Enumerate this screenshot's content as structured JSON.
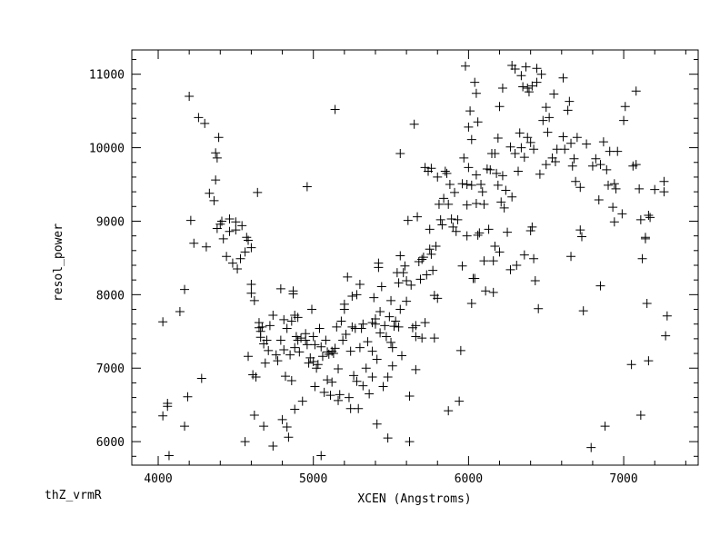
{
  "corner_label": "thZ_vrmR",
  "chart_data": {
    "type": "scatter",
    "xlabel": "XCEN (Angstroms)",
    "ylabel": "resol_power",
    "xlim": [
      3830,
      7480
    ],
    "ylim": [
      5680,
      11330
    ],
    "x_ticks": [
      4000,
      5000,
      6000,
      7000
    ],
    "y_ticks": [
      6000,
      7000,
      8000,
      9000,
      10000,
      11000
    ],
    "marker": "plus",
    "color": "#000000",
    "grid": false,
    "points": [
      [
        4030,
        7630
      ],
      [
        4030,
        6350
      ],
      [
        4060,
        6480
      ],
      [
        4060,
        6520
      ],
      [
        4070,
        5810
      ],
      [
        4140,
        7770
      ],
      [
        4170,
        8070
      ],
      [
        4170,
        6210
      ],
      [
        4190,
        6610
      ],
      [
        4200,
        10700
      ],
      [
        4210,
        9010
      ],
      [
        4230,
        8700
      ],
      [
        4260,
        10410
      ],
      [
        4280,
        6860
      ],
      [
        4300,
        10330
      ],
      [
        4310,
        8650
      ],
      [
        4330,
        9380
      ],
      [
        4360,
        9280
      ],
      [
        4370,
        9930
      ],
      [
        4370,
        9560
      ],
      [
        4380,
        8900
      ],
      [
        4380,
        9860
      ],
      [
        4390,
        10140
      ],
      [
        4400,
        8960
      ],
      [
        4410,
        9000
      ],
      [
        4420,
        8760
      ],
      [
        4440,
        8520
      ],
      [
        4460,
        9030
      ],
      [
        4460,
        8860
      ],
      [
        4480,
        8430
      ],
      [
        4500,
        8990
      ],
      [
        4500,
        8880
      ],
      [
        4510,
        8350
      ],
      [
        4530,
        8490
      ],
      [
        4540,
        8940
      ],
      [
        4560,
        8580
      ],
      [
        4560,
        6000
      ],
      [
        4570,
        8780
      ],
      [
        4580,
        8740
      ],
      [
        4580,
        7160
      ],
      [
        4600,
        8640
      ],
      [
        4600,
        8140
      ],
      [
        4600,
        8020
      ],
      [
        4610,
        6910
      ],
      [
        4620,
        6360
      ],
      [
        4620,
        7920
      ],
      [
        4630,
        6880
      ],
      [
        4640,
        9390
      ],
      [
        4650,
        7620
      ],
      [
        4650,
        7550
      ],
      [
        4660,
        7500
      ],
      [
        4660,
        7420
      ],
      [
        4670,
        7560
      ],
      [
        4680,
        7330
      ],
      [
        4680,
        6210
      ],
      [
        4690,
        7070
      ],
      [
        4700,
        7380
      ],
      [
        4710,
        7240
      ],
      [
        4720,
        7580
      ],
      [
        4740,
        5940
      ],
      [
        4740,
        7720
      ],
      [
        4760,
        7180
      ],
      [
        4770,
        7100
      ],
      [
        4790,
        8080
      ],
      [
        4790,
        7380
      ],
      [
        4800,
        6300
      ],
      [
        4810,
        7250
      ],
      [
        4810,
        7660
      ],
      [
        4820,
        6890
      ],
      [
        4830,
        7540
      ],
      [
        4830,
        6200
      ],
      [
        4840,
        6060
      ],
      [
        4850,
        7180
      ],
      [
        4860,
        6830
      ],
      [
        4860,
        7640
      ],
      [
        4870,
        8050
      ],
      [
        4870,
        8010
      ],
      [
        4880,
        6440
      ],
      [
        4880,
        7280
      ],
      [
        4880,
        7720
      ],
      [
        4890,
        7430
      ],
      [
        4900,
        7380
      ],
      [
        4900,
        7690
      ],
      [
        4910,
        7220
      ],
      [
        4920,
        7410
      ],
      [
        4930,
        6550
      ],
      [
        4950,
        7470
      ],
      [
        4950,
        7380
      ],
      [
        4960,
        9470
      ],
      [
        4960,
        7320
      ],
      [
        4970,
        7070
      ],
      [
        4980,
        7140
      ],
      [
        4990,
        7800
      ],
      [
        5000,
        7430
      ],
      [
        5000,
        7090
      ],
      [
        5010,
        7320
      ],
      [
        5010,
        6750
      ],
      [
        5020,
        7000
      ],
      [
        5030,
        7050
      ],
      [
        5040,
        7540
      ],
      [
        5050,
        7290
      ],
      [
        5050,
        5810
      ],
      [
        5060,
        7160
      ],
      [
        5070,
        6670
      ],
      [
        5080,
        7380
      ],
      [
        5090,
        7220
      ],
      [
        5090,
        6840
      ],
      [
        5100,
        7190
      ],
      [
        5110,
        6630
      ],
      [
        5120,
        6810
      ],
      [
        5120,
        7230
      ],
      [
        5130,
        7200
      ],
      [
        5140,
        10520
      ],
      [
        5140,
        7270
      ],
      [
        5150,
        7560
      ],
      [
        5160,
        6560
      ],
      [
        5160,
        6990
      ],
      [
        5170,
        6640
      ],
      [
        5180,
        7640
      ],
      [
        5190,
        7380
      ],
      [
        5200,
        7800
      ],
      [
        5200,
        7870
      ],
      [
        5210,
        7460
      ],
      [
        5220,
        8240
      ],
      [
        5230,
        6600
      ],
      [
        5240,
        7230
      ],
      [
        5240,
        6450
      ],
      [
        5250,
        7560
      ],
      [
        5250,
        7980
      ],
      [
        5260,
        6900
      ],
      [
        5270,
        7540
      ],
      [
        5280,
        6820
      ],
      [
        5280,
        8000
      ],
      [
        5290,
        6450
      ],
      [
        5300,
        8140
      ],
      [
        5300,
        7280
      ],
      [
        5310,
        7540
      ],
      [
        5320,
        6760
      ],
      [
        5320,
        7600
      ],
      [
        5340,
        7000
      ],
      [
        5350,
        7360
      ],
      [
        5360,
        6650
      ],
      [
        5380,
        7230
      ],
      [
        5380,
        6880
      ],
      [
        5380,
        7620
      ],
      [
        5390,
        7960
      ],
      [
        5400,
        7670
      ],
      [
        5400,
        7600
      ],
      [
        5410,
        6240
      ],
      [
        5410,
        7120
      ],
      [
        5420,
        8430
      ],
      [
        5420,
        8370
      ],
      [
        5430,
        7480
      ],
      [
        5430,
        7770
      ],
      [
        5440,
        8110
      ],
      [
        5450,
        6750
      ],
      [
        5460,
        7580
      ],
      [
        5470,
        7430
      ],
      [
        5480,
        6880
      ],
      [
        5480,
        6050
      ],
      [
        5490,
        7700
      ],
      [
        5500,
        7350
      ],
      [
        5500,
        7920
      ],
      [
        5510,
        7030
      ],
      [
        5510,
        7280
      ],
      [
        5520,
        7570
      ],
      [
        5530,
        7640
      ],
      [
        5540,
        8300
      ],
      [
        5550,
        7560
      ],
      [
        5550,
        8160
      ],
      [
        5560,
        9920
      ],
      [
        5560,
        7800
      ],
      [
        5560,
        8530
      ],
      [
        5570,
        7170
      ],
      [
        5580,
        8300
      ],
      [
        5590,
        8390
      ],
      [
        5600,
        8190
      ],
      [
        5600,
        7910
      ],
      [
        5610,
        9010
      ],
      [
        5620,
        6000
      ],
      [
        5620,
        6620
      ],
      [
        5630,
        8130
      ],
      [
        5640,
        7550
      ],
      [
        5650,
        10320
      ],
      [
        5660,
        7580
      ],
      [
        5660,
        7430
      ],
      [
        5660,
        6980
      ],
      [
        5670,
        9060
      ],
      [
        5680,
        8450
      ],
      [
        5690,
        8210
      ],
      [
        5700,
        8480
      ],
      [
        5700,
        7410
      ],
      [
        5710,
        8510
      ],
      [
        5720,
        7620
      ],
      [
        5720,
        9730
      ],
      [
        5730,
        8270
      ],
      [
        5740,
        9680
      ],
      [
        5750,
        8620
      ],
      [
        5750,
        8890
      ],
      [
        5760,
        9720
      ],
      [
        5760,
        8550
      ],
      [
        5770,
        8330
      ],
      [
        5780,
        7410
      ],
      [
        5780,
        7990
      ],
      [
        5790,
        8660
      ],
      [
        5800,
        9600
      ],
      [
        5800,
        7950
      ],
      [
        5810,
        9230
      ],
      [
        5820,
        9020
      ],
      [
        5830,
        8950
      ],
      [
        5840,
        9310
      ],
      [
        5850,
        9680
      ],
      [
        5860,
        9650
      ],
      [
        5870,
        6420
      ],
      [
        5870,
        9230
      ],
      [
        5880,
        9500
      ],
      [
        5890,
        9030
      ],
      [
        5900,
        8920
      ],
      [
        5910,
        9390
      ],
      [
        5920,
        8860
      ],
      [
        5930,
        9020
      ],
      [
        5940,
        6550
      ],
      [
        5950,
        7240
      ],
      [
        5960,
        9510
      ],
      [
        5960,
        8390
      ],
      [
        5970,
        9860
      ],
      [
        5980,
        11110
      ],
      [
        5990,
        9220
      ],
      [
        5990,
        8800
      ],
      [
        5990,
        9500
      ],
      [
        6000,
        10280
      ],
      [
        6000,
        9730
      ],
      [
        6010,
        10500
      ],
      [
        6020,
        7880
      ],
      [
        6020,
        9490
      ],
      [
        6020,
        10110
      ],
      [
        6030,
        8220
      ],
      [
        6040,
        10890
      ],
      [
        6040,
        8220
      ],
      [
        6050,
        9240
      ],
      [
        6050,
        10740
      ],
      [
        6050,
        9630
      ],
      [
        6060,
        10350
      ],
      [
        6060,
        8810
      ],
      [
        6070,
        8840
      ],
      [
        6080,
        9500
      ],
      [
        6090,
        9400
      ],
      [
        6100,
        8460
      ],
      [
        6100,
        9230
      ],
      [
        6110,
        8050
      ],
      [
        6120,
        9710
      ],
      [
        6130,
        8890
      ],
      [
        6140,
        9700
      ],
      [
        6150,
        9920
      ],
      [
        6160,
        8030
      ],
      [
        6160,
        8460
      ],
      [
        6170,
        9920
      ],
      [
        6170,
        8660
      ],
      [
        6180,
        9650
      ],
      [
        6190,
        9490
      ],
      [
        6190,
        10130
      ],
      [
        6200,
        8580
      ],
      [
        6200,
        10560
      ],
      [
        6210,
        9260
      ],
      [
        6220,
        10810
      ],
      [
        6220,
        9620
      ],
      [
        6230,
        9180
      ],
      [
        6240,
        9420
      ],
      [
        6250,
        8850
      ],
      [
        6270,
        8340
      ],
      [
        6270,
        10010
      ],
      [
        6280,
        11120
      ],
      [
        6280,
        9330
      ],
      [
        6300,
        11070
      ],
      [
        6300,
        9920
      ],
      [
        6310,
        8400
      ],
      [
        6320,
        9680
      ],
      [
        6330,
        10200
      ],
      [
        6340,
        10000
      ],
      [
        6340,
        10980
      ],
      [
        6350,
        10830
      ],
      [
        6360,
        8540
      ],
      [
        6360,
        9870
      ],
      [
        6370,
        11100
      ],
      [
        6380,
        10810
      ],
      [
        6380,
        10140
      ],
      [
        6390,
        10760
      ],
      [
        6400,
        8870
      ],
      [
        6400,
        10070
      ],
      [
        6410,
        8920
      ],
      [
        6410,
        10840
      ],
      [
        6420,
        9980
      ],
      [
        6420,
        8490
      ],
      [
        6430,
        8190
      ],
      [
        6440,
        11080
      ],
      [
        6440,
        10890
      ],
      [
        6450,
        7810
      ],
      [
        6460,
        9640
      ],
      [
        6470,
        11000
      ],
      [
        6480,
        10370
      ],
      [
        6500,
        9770
      ],
      [
        6500,
        10550
      ],
      [
        6510,
        10210
      ],
      [
        6520,
        10410
      ],
      [
        6540,
        9860
      ],
      [
        6550,
        10730
      ],
      [
        6560,
        9810
      ],
      [
        6570,
        9980
      ],
      [
        6610,
        10950
      ],
      [
        6610,
        10150
      ],
      [
        6620,
        9980
      ],
      [
        6640,
        10510
      ],
      [
        6650,
        10630
      ],
      [
        6660,
        8520
      ],
      [
        6660,
        10060
      ],
      [
        6670,
        9750
      ],
      [
        6680,
        9850
      ],
      [
        6690,
        9540
      ],
      [
        6700,
        10140
      ],
      [
        6720,
        8880
      ],
      [
        6720,
        9460
      ],
      [
        6730,
        8790
      ],
      [
        6740,
        7780
      ],
      [
        6760,
        10050
      ],
      [
        6790,
        5920
      ],
      [
        6800,
        9750
      ],
      [
        6820,
        9850
      ],
      [
        6840,
        9290
      ],
      [
        6850,
        8120
      ],
      [
        6850,
        9770
      ],
      [
        6870,
        10080
      ],
      [
        6880,
        6210
      ],
      [
        6890,
        9700
      ],
      [
        6900,
        9490
      ],
      [
        6910,
        9950
      ],
      [
        6930,
        9190
      ],
      [
        6940,
        8990
      ],
      [
        6940,
        9510
      ],
      [
        6950,
        9440
      ],
      [
        6960,
        9950
      ],
      [
        6990,
        9100
      ],
      [
        7000,
        10370
      ],
      [
        7010,
        10560
      ],
      [
        7050,
        7050
      ],
      [
        7060,
        9750
      ],
      [
        7080,
        9770
      ],
      [
        7080,
        10770
      ],
      [
        7100,
        9440
      ],
      [
        7110,
        9020
      ],
      [
        7110,
        6360
      ],
      [
        7120,
        8490
      ],
      [
        7140,
        8780
      ],
      [
        7140,
        8760
      ],
      [
        7150,
        7880
      ],
      [
        7160,
        7100
      ],
      [
        7160,
        9080
      ],
      [
        7170,
        9050
      ],
      [
        7200,
        9430
      ],
      [
        7260,
        9400
      ],
      [
        7260,
        9540
      ],
      [
        7270,
        7440
      ],
      [
        7280,
        7710
      ]
    ]
  }
}
